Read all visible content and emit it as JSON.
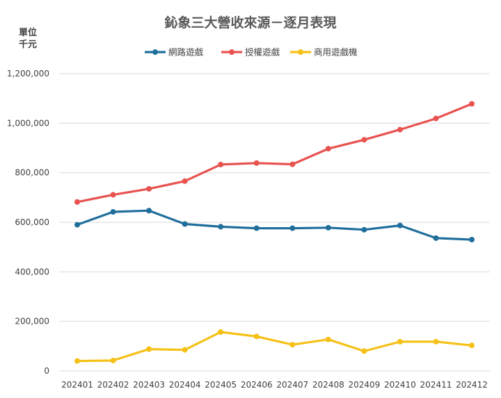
{
  "chart_data": {
    "type": "line",
    "title": "鈊象三大營收來源－逐月表現",
    "unit_label_line1": "單位",
    "unit_label_line2": "千元",
    "xlabel": "",
    "ylabel": "單位 千元",
    "ylim": [
      0,
      1200000
    ],
    "yticks": [
      0,
      200000,
      400000,
      600000,
      800000,
      1000000,
      1200000
    ],
    "ytick_labels": [
      "0",
      "200,000",
      "400,000",
      "600,000",
      "800,000",
      "1,000,000",
      "1,200,000"
    ],
    "categories": [
      "202401",
      "202402",
      "202403",
      "202404",
      "202405",
      "202406",
      "202407",
      "202408",
      "202409",
      "202410",
      "202411",
      "202412"
    ],
    "legend_position": "top",
    "grid": true,
    "series": [
      {
        "name": "網路遊戲",
        "color": "#1f6e9c",
        "values": [
          590000,
          642000,
          647000,
          593000,
          582000,
          576000,
          576000,
          578000,
          570000,
          587000,
          536000,
          530000
        ]
      },
      {
        "name": "授權遊戲",
        "color": "#e8524f",
        "values": [
          682000,
          711000,
          735000,
          766000,
          833000,
          839000,
          834000,
          897000,
          933000,
          974000,
          1019000,
          1078000
        ]
      },
      {
        "name": "商用遊戲機",
        "color": "#f5c116",
        "values": [
          40000,
          42000,
          88000,
          85000,
          157000,
          139000,
          106000,
          127000,
          80000,
          118000,
          118000,
          103000
        ]
      }
    ]
  }
}
